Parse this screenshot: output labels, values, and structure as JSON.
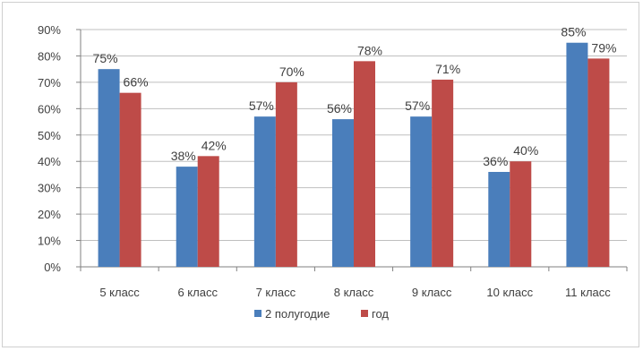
{
  "chart_data": {
    "type": "bar",
    "categories": [
      "5 класс",
      "6 класс",
      "7 класс",
      "8 класс",
      "9 класс",
      "10 класс",
      "11 класс"
    ],
    "series": [
      {
        "name": "2 полугодие",
        "color": "#4a7ebb",
        "values": [
          75,
          38,
          57,
          56,
          57,
          36,
          85
        ],
        "labels": [
          "75%",
          "38%",
          "57%",
          "56%",
          "57%",
          "36%",
          "85%"
        ]
      },
      {
        "name": "год",
        "color": "#be4b48",
        "values": [
          66,
          42,
          70,
          78,
          71,
          40,
          79
        ],
        "labels": [
          "66%",
          "42%",
          "70%",
          "78%",
          "71%",
          "40%",
          "79%"
        ]
      }
    ],
    "ylim": [
      0,
      90
    ],
    "yticks": [
      "0%",
      "10%",
      "20%",
      "30%",
      "40%",
      "50%",
      "60%",
      "70%",
      "80%",
      "90%"
    ],
    "grid": true,
    "legend_position": "bottom",
    "title": "",
    "xlabel": "",
    "ylabel": ""
  }
}
